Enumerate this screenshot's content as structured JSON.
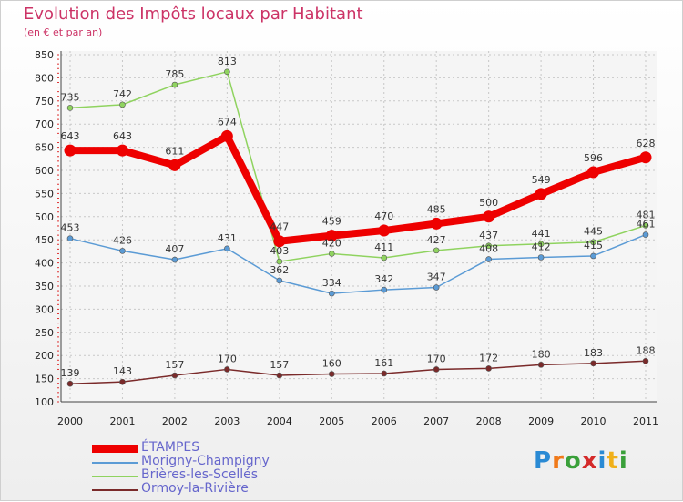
{
  "header": {
    "title": "Evolution des Impôts locaux par Habitant",
    "subtitle": "(en € et par an)"
  },
  "logo": {
    "letters": [
      "P",
      "r",
      "o",
      "x",
      "i",
      "t",
      "i"
    ],
    "colors": [
      "#2a8ad4",
      "#f07a1a",
      "#3aa03a",
      "#d42a2a",
      "#2a8ad4",
      "#f0b01a",
      "#3aa03a"
    ]
  },
  "chart_data": {
    "type": "line",
    "title": "Evolution des Impôts locaux par Habitant",
    "subtitle": "(en € et par an)",
    "xlabel": "",
    "ylabel": "",
    "x": [
      "2000",
      "2001",
      "2002",
      "2003",
      "2004",
      "2005",
      "2006",
      "2007",
      "2008",
      "2009",
      "2010",
      "2011"
    ],
    "ylim": [
      100,
      850
    ],
    "yticks": [
      100,
      150,
      200,
      250,
      300,
      350,
      400,
      450,
      500,
      550,
      600,
      650,
      700,
      750,
      800,
      850
    ],
    "grid": true,
    "legend": "bottom-left",
    "series": [
      {
        "name": "ÉTAMPES",
        "color": "#ee0000",
        "values": [
          643,
          643,
          611,
          674,
          447,
          459,
          470,
          485,
          500,
          549,
          596,
          628
        ]
      },
      {
        "name": "Morigny-Champigny",
        "color": "#5b9bd5",
        "values": [
          453,
          426,
          407,
          431,
          362,
          334,
          342,
          347,
          408,
          412,
          415,
          461
        ]
      },
      {
        "name": "Brières-les-Scellés",
        "color": "#8fd35f",
        "values": [
          735,
          742,
          785,
          813,
          403,
          420,
          411,
          427,
          437,
          441,
          445,
          481
        ]
      },
      {
        "name": "Ormoy-la-Rivière",
        "color": "#7a2a2a",
        "values": [
          139,
          143,
          157,
          170,
          157,
          160,
          161,
          170,
          172,
          180,
          183,
          188
        ]
      }
    ]
  }
}
